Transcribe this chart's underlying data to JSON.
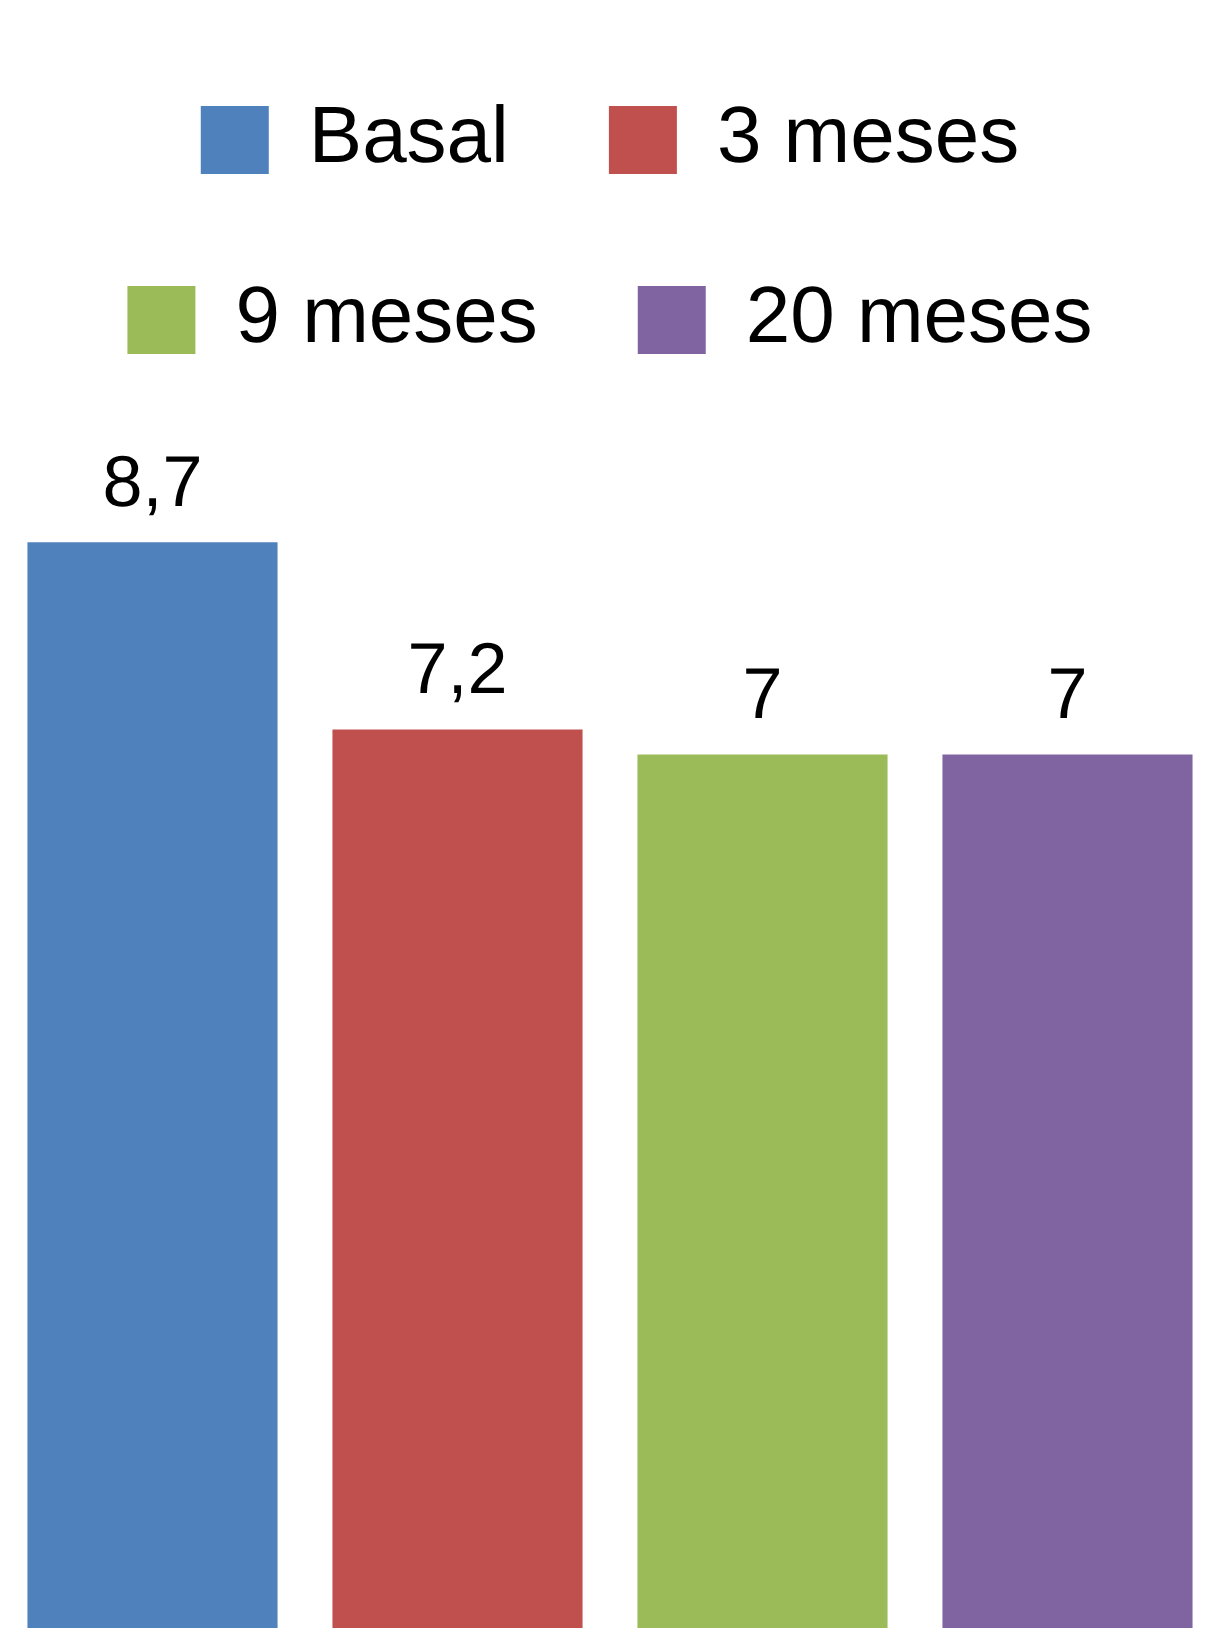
{
  "chart_data": {
    "type": "bar",
    "categories": [
      null
    ],
    "series": [
      {
        "name": "Basal",
        "color": "#4f81bd",
        "values": [
          8.7
        ],
        "value_labels": [
          "8,7"
        ]
      },
      {
        "name": "3 meses",
        "color": "#c0504d",
        "values": [
          7.2
        ],
        "value_labels": [
          "7,2"
        ]
      },
      {
        "name": "9 meses",
        "color": "#9bbb59",
        "values": [
          7
        ],
        "value_labels": [
          "7"
        ]
      },
      {
        "name": "20 meses",
        "color": "#8064a2",
        "values": [
          7
        ],
        "value_labels": [
          "7"
        ]
      }
    ],
    "legend": "top",
    "tick_labels": false
  }
}
